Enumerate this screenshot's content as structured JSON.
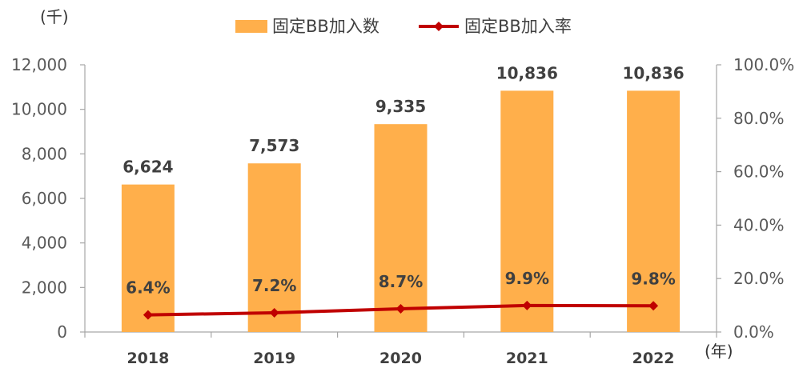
{
  "chart_data": {
    "type": "bar+line",
    "categories": [
      "2018",
      "2019",
      "2020",
      "2021",
      "2022"
    ],
    "series": [
      {
        "name": "固定BB加入数",
        "kind": "bar",
        "axis": "left",
        "values": [
          6624,
          7573,
          9335,
          10836,
          10836
        ],
        "labels": [
          "6,624",
          "7,573",
          "9,335",
          "10,836",
          "10,836"
        ],
        "color": "#FFAF4B"
      },
      {
        "name": "固定BB加入率",
        "kind": "line",
        "axis": "right",
        "values": [
          6.4,
          7.2,
          8.7,
          9.9,
          9.8
        ],
        "labels": [
          "6.4%",
          "7.2%",
          "8.7%",
          "9.9%",
          "9.8%"
        ],
        "color": "#C00000",
        "marker": "diamond"
      }
    ],
    "left_axis": {
      "unit_label": "(千)",
      "ylim": [
        0,
        12000
      ],
      "ticks": [
        0,
        2000,
        4000,
        6000,
        8000,
        10000,
        12000
      ],
      "tick_labels": [
        "0",
        "2,000",
        "4,000",
        "6,000",
        "8,000",
        "10,000",
        "12,000"
      ]
    },
    "right_axis": {
      "ylim": [
        0,
        100
      ],
      "ticks": [
        0,
        20,
        40,
        60,
        80,
        100
      ],
      "tick_labels": [
        "0.0%",
        "20.0%",
        "40.0%",
        "60.0%",
        "80.0%",
        "100.0%"
      ]
    },
    "x_unit_label": "(年)",
    "legend_position": "top",
    "grid": false
  }
}
